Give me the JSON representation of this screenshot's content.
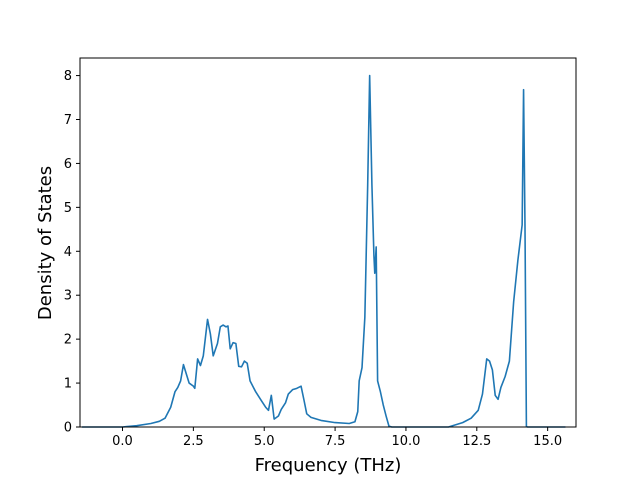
{
  "chart_data": {
    "type": "line",
    "title": "",
    "xlabel": "Frequency (THz)",
    "ylabel": "Density of States",
    "xlim": [
      -1.5,
      16.0
    ],
    "ylim": [
      0,
      8.4
    ],
    "xticks": [
      0.0,
      2.5,
      5.0,
      7.5,
      10.0,
      12.5,
      15.0
    ],
    "xtick_labels": [
      "0.0",
      "2.5",
      "5.0",
      "7.5",
      "10.0",
      "12.5",
      "15.0"
    ],
    "yticks": [
      0,
      1,
      2,
      3,
      4,
      5,
      6,
      7,
      8
    ],
    "ytick_labels": [
      "0",
      "1",
      "2",
      "3",
      "4",
      "5",
      "6",
      "7",
      "8"
    ],
    "grid": false,
    "legend": "none",
    "series": [
      {
        "color": "#1f77b4",
        "x": [
          -1.4,
          0.0,
          0.5,
          1.0,
          1.3,
          1.5,
          1.7,
          1.85,
          1.95,
          2.05,
          2.15,
          2.35,
          2.5,
          2.55,
          2.65,
          2.75,
          2.85,
          3.0,
          3.1,
          3.2,
          3.35,
          3.45,
          3.55,
          3.65,
          3.72,
          3.8,
          3.9,
          4.0,
          4.1,
          4.2,
          4.3,
          4.4,
          4.5,
          4.7,
          4.9,
          5.05,
          5.15,
          5.25,
          5.35,
          5.5,
          5.6,
          5.75,
          5.85,
          6.0,
          6.15,
          6.3,
          6.4,
          6.5,
          6.65,
          7.0,
          7.5,
          8.0,
          8.2,
          8.3,
          8.35,
          8.45,
          8.55,
          8.65,
          8.72,
          8.8,
          8.87,
          8.9,
          8.95,
          9.0,
          9.1,
          9.2,
          9.3,
          9.4,
          9.5,
          10.0,
          11.0,
          11.5,
          12.0,
          12.3,
          12.55,
          12.7,
          12.85,
          12.95,
          13.05,
          13.15,
          13.25,
          13.35,
          13.5,
          13.65,
          13.8,
          13.95,
          14.1,
          14.15,
          14.2,
          14.25,
          14.28,
          15.6
        ],
        "y": [
          0.0,
          0.0,
          0.03,
          0.08,
          0.13,
          0.2,
          0.45,
          0.8,
          0.9,
          1.05,
          1.42,
          1.0,
          0.93,
          0.88,
          1.55,
          1.4,
          1.62,
          2.45,
          2.12,
          1.62,
          1.9,
          2.28,
          2.32,
          2.28,
          2.3,
          1.78,
          1.92,
          1.9,
          1.38,
          1.37,
          1.5,
          1.45,
          1.05,
          0.8,
          0.6,
          0.45,
          0.38,
          0.72,
          0.18,
          0.25,
          0.4,
          0.55,
          0.75,
          0.85,
          0.88,
          0.93,
          0.62,
          0.3,
          0.22,
          0.15,
          0.1,
          0.08,
          0.12,
          0.35,
          1.05,
          1.35,
          2.5,
          5.5,
          8.0,
          5.5,
          3.9,
          3.5,
          4.1,
          1.05,
          0.8,
          0.5,
          0.25,
          0.02,
          0.0,
          0.0,
          0.0,
          0.0,
          0.1,
          0.2,
          0.38,
          0.75,
          1.55,
          1.5,
          1.3,
          0.72,
          0.63,
          0.9,
          1.15,
          1.5,
          2.85,
          3.8,
          4.6,
          7.68,
          4.6,
          0.02,
          0.0,
          0.0
        ]
      }
    ]
  }
}
